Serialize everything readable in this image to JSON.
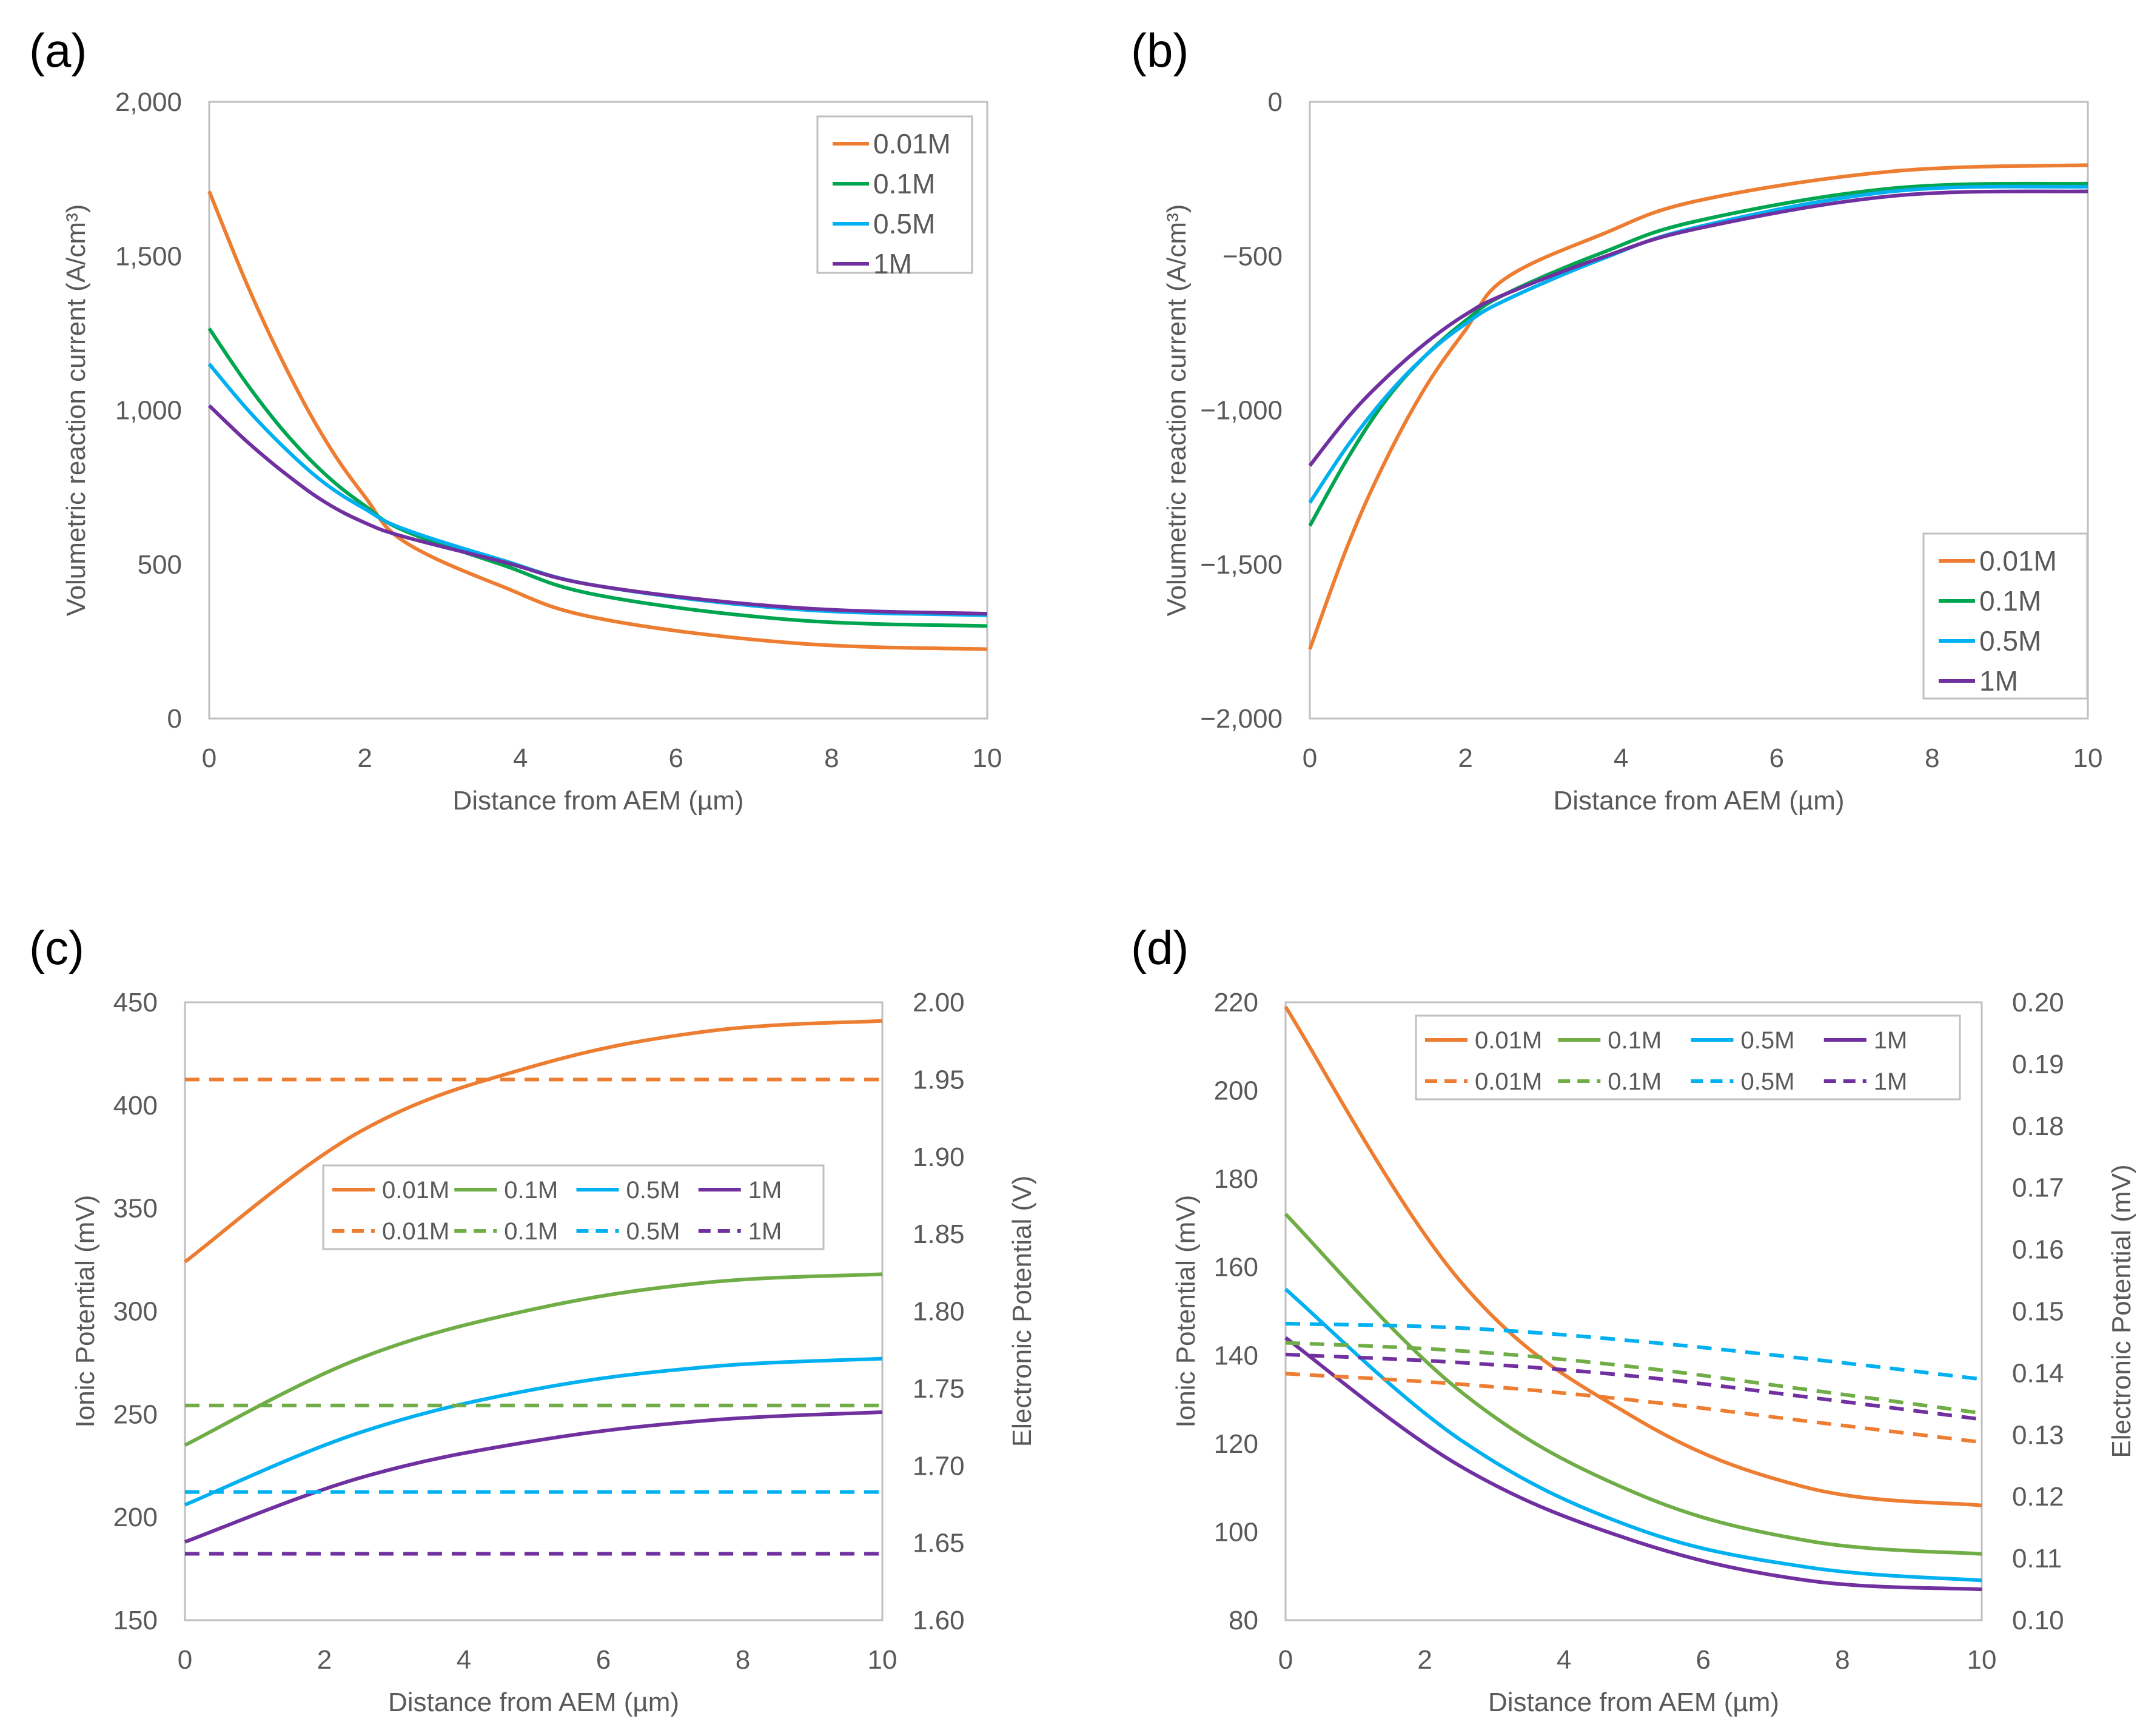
{
  "figure": {
    "colors": {
      "0.01M": "#ED7D31",
      "0.1M_ab": "#00A550",
      "0.1M_cd": "#70AD47",
      "0.5M": "#00B0F0",
      "1M": "#7030A0",
      "axis": "#595959",
      "frame": "#BFBFBF"
    }
  },
  "chart_data": [
    {
      "id": "a",
      "panel_label": "(a)",
      "type": "line",
      "xlabel": "Distance from AEM (µm)",
      "ylabel": "Volumetric reaction current (A/cm³)",
      "xlim": [
        0,
        10
      ],
      "ylim": [
        0,
        2000
      ],
      "xticks": [
        0,
        2,
        4,
        6,
        8,
        10
      ],
      "xtick_labels": [
        "0",
        "2",
        "4",
        "6",
        "8",
        "10"
      ],
      "yticks": [
        0,
        500,
        1000,
        1500,
        2000
      ],
      "ytick_labels": [
        "0",
        "500",
        "1,000",
        "1,500",
        "2,000"
      ],
      "legend_position": "top-right",
      "series": [
        {
          "name": "0.01M",
          "legend_label": "0.01M",
          "color": "#ED7D31",
          "dash": "solid",
          "x": [
            0,
            0.5,
            1,
            1.5,
            2,
            2.5,
            3.75,
            5,
            7.5,
            10
          ],
          "y": [
            1710,
            1400,
            1130,
            900,
            720,
            575,
            430,
            325,
            245,
            225
          ]
        },
        {
          "name": "0.1M",
          "legend_label": "0.1M",
          "color": "#00A550",
          "dash": "solid",
          "x": [
            0,
            0.5,
            1,
            1.5,
            2,
            2.5,
            3.75,
            5,
            7.5,
            10
          ],
          "y": [
            1265,
            1080,
            920,
            790,
            690,
            610,
            500,
            400,
            320,
            300
          ]
        },
        {
          "name": "0.5M",
          "legend_label": "0.5M",
          "color": "#00B0F0",
          "dash": "solid",
          "x": [
            0,
            0.5,
            1,
            1.5,
            2,
            2.5,
            3.75,
            5,
            7.5,
            10
          ],
          "y": [
            1150,
            1000,
            870,
            760,
            680,
            615,
            515,
            430,
            355,
            335
          ]
        },
        {
          "name": "1M",
          "legend_label": "1M",
          "color": "#7030A0",
          "dash": "solid",
          "x": [
            0,
            0.5,
            1,
            1.5,
            2,
            2.5,
            3.75,
            5,
            7.5,
            10
          ],
          "y": [
            1015,
            895,
            790,
            700,
            635,
            590,
            510,
            430,
            360,
            340
          ]
        }
      ]
    },
    {
      "id": "b",
      "panel_label": "(b)",
      "type": "line",
      "xlabel": "Distance from AEM (µm)",
      "ylabel": "Volumetric reaction current (A/cm³)",
      "xlim": [
        0,
        10
      ],
      "ylim": [
        -2000,
        0
      ],
      "xticks": [
        0,
        2,
        4,
        6,
        8,
        10
      ],
      "xtick_labels": [
        "0",
        "2",
        "4",
        "6",
        "8",
        "10"
      ],
      "yticks": [
        -2000,
        -1500,
        -1000,
        -500,
        0
      ],
      "ytick_labels": [
        "−2,000",
        "−1,500",
        "−1,000",
        "−500",
        "0"
      ],
      "legend_position": "bottom-right",
      "series": [
        {
          "name": "0.01M",
          "legend_label": "0.01M",
          "color": "#ED7D31",
          "dash": "solid",
          "x": [
            0,
            0.5,
            1,
            1.5,
            2,
            2.5,
            3.75,
            5,
            7.5,
            10
          ],
          "y": [
            -1775,
            -1430,
            -1150,
            -920,
            -740,
            -575,
            -430,
            -320,
            -225,
            -205
          ]
        },
        {
          "name": "0.1M",
          "legend_label": "0.1M",
          "color": "#00A550",
          "dash": "solid",
          "x": [
            0,
            0.5,
            1,
            1.5,
            2,
            2.5,
            3.75,
            5,
            7.5,
            10
          ],
          "y": [
            -1375,
            -1150,
            -960,
            -820,
            -710,
            -625,
            -490,
            -385,
            -280,
            -265
          ]
        },
        {
          "name": "0.5M",
          "legend_label": "0.5M",
          "color": "#00B0F0",
          "dash": "solid",
          "x": [
            0,
            0.5,
            1,
            1.5,
            2,
            2.5,
            3.75,
            5,
            7.5,
            10
          ],
          "y": [
            -1300,
            -1110,
            -950,
            -820,
            -720,
            -645,
            -510,
            -405,
            -290,
            -275
          ]
        },
        {
          "name": "1M",
          "legend_label": "1M",
          "color": "#7030A0",
          "dash": "solid",
          "x": [
            0,
            0.5,
            1,
            1.5,
            2,
            2.5,
            3.75,
            5,
            7.5,
            10
          ],
          "y": [
            -1180,
            -1020,
            -890,
            -780,
            -690,
            -625,
            -505,
            -410,
            -305,
            -290
          ]
        }
      ]
    },
    {
      "id": "c",
      "panel_label": "(c)",
      "type": "line",
      "xlabel": "Distance from AEM (µm)",
      "ylabel": "Ionic Potential (mV)",
      "y2label": "Electronic Potential (V)",
      "xlim": [
        0,
        10
      ],
      "ylim": [
        150,
        450
      ],
      "y2lim": [
        1.6,
        2.0
      ],
      "xticks": [
        0,
        2,
        4,
        6,
        8,
        10
      ],
      "xtick_labels": [
        "0",
        "2",
        "4",
        "6",
        "8",
        "10"
      ],
      "yticks": [
        150,
        200,
        250,
        300,
        350,
        400,
        450
      ],
      "ytick_labels": [
        "150",
        "200",
        "250",
        "300",
        "350",
        "400",
        "450"
      ],
      "y2ticks": [
        1.6,
        1.65,
        1.7,
        1.75,
        1.8,
        1.85,
        1.9,
        1.95,
        2.0
      ],
      "y2tick_labels": [
        "1.60",
        "1.65",
        "1.70",
        "1.75",
        "1.80",
        "1.85",
        "1.90",
        "1.95",
        "2.00"
      ],
      "legend_position": "center-right",
      "series": [
        {
          "name": "0.01M ionic",
          "legend_label": "0.01M",
          "color": "#ED7D31",
          "dash": "solid",
          "axis": "left",
          "x": [
            0,
            2.5,
            5,
            7.5,
            10
          ],
          "y": [
            324,
            387,
            419,
            436,
            441
          ]
        },
        {
          "name": "0.1M ionic",
          "legend_label": "0.1M",
          "color": "#70AD47",
          "dash": "solid",
          "axis": "left",
          "x": [
            0,
            2.5,
            5,
            7.5,
            10
          ],
          "y": [
            235,
            277,
            301,
            314,
            318
          ]
        },
        {
          "name": "0.5M ionic",
          "legend_label": "0.5M",
          "color": "#00B0F0",
          "dash": "solid",
          "axis": "left",
          "x": [
            0,
            2.5,
            5,
            7.5,
            10
          ],
          "y": [
            206,
            241,
            262,
            273,
            277
          ]
        },
        {
          "name": "1M ionic",
          "legend_label": "1M",
          "color": "#7030A0",
          "dash": "solid",
          "axis": "left",
          "x": [
            0,
            2.5,
            5,
            7.5,
            10
          ],
          "y": [
            188,
            219,
            237,
            247,
            251
          ]
        },
        {
          "name": "0.01M electronic",
          "legend_label": "0.01M",
          "color": "#ED7D31",
          "dash": "dashed",
          "axis": "right",
          "x": [
            0,
            10
          ],
          "y": [
            1.95,
            1.95
          ]
        },
        {
          "name": "0.1M electronic",
          "legend_label": "0.1M",
          "color": "#70AD47",
          "dash": "dashed",
          "axis": "right",
          "x": [
            0,
            10
          ],
          "y": [
            1.739,
            1.739
          ]
        },
        {
          "name": "0.5M electronic",
          "legend_label": "0.5M",
          "color": "#00B0F0",
          "dash": "dashed",
          "axis": "right",
          "x": [
            0,
            10
          ],
          "y": [
            1.683,
            1.683
          ]
        },
        {
          "name": "1M electronic",
          "legend_label": "1M",
          "color": "#7030A0",
          "dash": "dashed",
          "axis": "right",
          "x": [
            0,
            10
          ],
          "y": [
            1.643,
            1.643
          ]
        }
      ]
    },
    {
      "id": "d",
      "panel_label": "(d)",
      "type": "line",
      "xlabel": "Distance from AEM (µm)",
      "ylabel": "Ionic Potential (mV)",
      "y2label": "Electronic Potential (mV)",
      "xlim": [
        0,
        10
      ],
      "ylim": [
        80,
        220
      ],
      "y2lim": [
        0.1,
        0.2
      ],
      "xticks": [
        0,
        2,
        4,
        6,
        8,
        10
      ],
      "xtick_labels": [
        "0",
        "2",
        "4",
        "6",
        "8",
        "10"
      ],
      "yticks": [
        80,
        100,
        120,
        140,
        160,
        180,
        200,
        220
      ],
      "ytick_labels": [
        "80",
        "100",
        "120",
        "140",
        "160",
        "180",
        "200",
        "220"
      ],
      "y2ticks": [
        0.1,
        0.11,
        0.12,
        0.13,
        0.14,
        0.15,
        0.16,
        0.17,
        0.18,
        0.19,
        0.2
      ],
      "y2tick_labels": [
        "0.10",
        "0.11",
        "0.12",
        "0.13",
        "0.14",
        "0.15",
        "0.16",
        "0.17",
        "0.18",
        "0.19",
        "0.20"
      ],
      "legend_position": "top-right",
      "series": [
        {
          "name": "0.01M ionic",
          "legend_label": "0.01M",
          "color": "#ED7D31",
          "dash": "solid",
          "axis": "left",
          "x": [
            0,
            2.5,
            5,
            7.5,
            10
          ],
          "y": [
            219,
            157,
            126,
            110,
            106
          ]
        },
        {
          "name": "0.1M ionic",
          "legend_label": "0.1M",
          "color": "#70AD47",
          "dash": "solid",
          "axis": "left",
          "x": [
            0,
            2.5,
            5,
            7.5,
            10
          ],
          "y": [
            172,
            132,
            109,
            98,
            95
          ]
        },
        {
          "name": "0.5M ionic",
          "legend_label": "0.5M",
          "color": "#00B0F0",
          "dash": "solid",
          "axis": "left",
          "x": [
            0,
            2.5,
            5,
            7.5,
            10
          ],
          "y": [
            155,
            121,
            101,
            92,
            89
          ]
        },
        {
          "name": "1M ionic",
          "legend_label": "1M",
          "color": "#7030A0",
          "dash": "solid",
          "axis": "left",
          "x": [
            0,
            2.5,
            5,
            7.5,
            10
          ],
          "y": [
            144,
            115,
            98,
            89,
            87
          ]
        },
        {
          "name": "0.01M electronic",
          "legend_label": "0.01M",
          "color": "#ED7D31",
          "dash": "dashed",
          "axis": "right",
          "x": [
            0,
            2.5,
            5,
            7.5,
            10
          ],
          "y": [
            0.1399,
            0.1382,
            0.1356,
            0.1322,
            0.1288
          ]
        },
        {
          "name": "0.1M electronic",
          "legend_label": "0.1M",
          "color": "#70AD47",
          "dash": "dashed",
          "axis": "right",
          "x": [
            0,
            2.5,
            5,
            7.5,
            10
          ],
          "y": [
            0.1449,
            0.1436,
            0.141,
            0.1373,
            0.1335
          ]
        },
        {
          "name": "0.5M electronic",
          "legend_label": "0.5M",
          "color": "#00B0F0",
          "dash": "dashed",
          "axis": "right",
          "x": [
            0,
            2.5,
            5,
            7.5,
            10
          ],
          "y": [
            0.148,
            0.1473,
            0.1452,
            0.1423,
            0.139
          ]
        },
        {
          "name": "1M electronic",
          "legend_label": "1M",
          "color": "#7030A0",
          "dash": "dashed",
          "axis": "right",
          "x": [
            0,
            2.5,
            5,
            7.5,
            10
          ],
          "y": [
            0.143,
            0.1417,
            0.1395,
            0.1361,
            0.1325
          ]
        }
      ]
    }
  ]
}
